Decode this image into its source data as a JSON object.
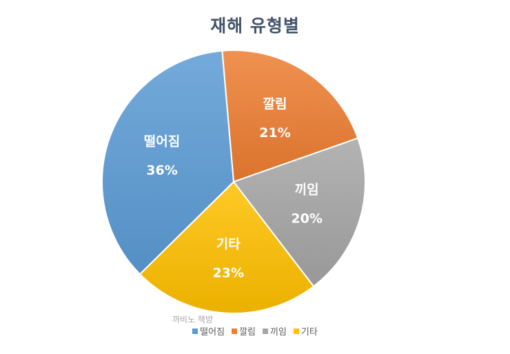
{
  "chart_data": {
    "type": "pie",
    "title": "재해 유형별",
    "categories": [
      "떨어짐",
      "깔림",
      "끼임",
      "기타"
    ],
    "values": [
      36,
      21,
      20,
      23
    ],
    "value_labels": [
      "36%",
      "21%",
      "20%",
      "23%"
    ],
    "colors": [
      "#5b9bd5",
      "#ed7d31",
      "#a5a5a5",
      "#ffc000"
    ],
    "legend_position": "bottom",
    "start_angle_deg": -5
  },
  "watermark": "까비노 책방"
}
